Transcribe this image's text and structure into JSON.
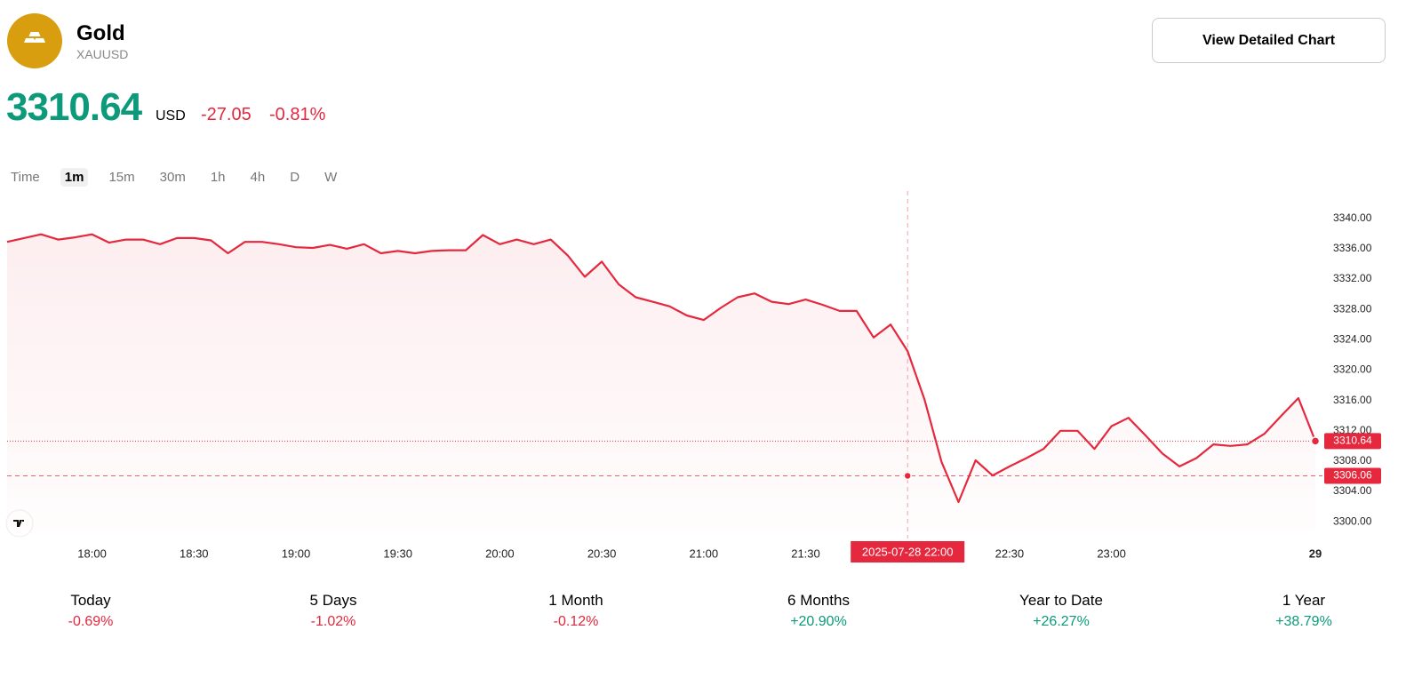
{
  "header": {
    "title": "Gold",
    "symbol": "XAUUSD",
    "button": "View Detailed Chart",
    "price": "3310.64",
    "currency": "USD",
    "change": "-27.05",
    "change_percent": "-0.81%"
  },
  "timeframes": {
    "items": [
      "Time",
      "1m",
      "15m",
      "30m",
      "1h",
      "4h",
      "D",
      "W"
    ],
    "selected": "1m"
  },
  "chart_data": {
    "type": "line",
    "color": "#e5283d",
    "x": [
      "2025-07-28 17:35",
      "2025-07-28 17:40",
      "2025-07-28 17:45",
      "2025-07-28 17:50",
      "2025-07-28 17:55",
      "2025-07-28 18:00",
      "2025-07-28 18:05",
      "2025-07-28 18:10",
      "2025-07-28 18:15",
      "2025-07-28 18:20",
      "2025-07-28 18:25",
      "2025-07-28 18:30",
      "2025-07-28 18:35",
      "2025-07-28 18:40",
      "2025-07-28 18:45",
      "2025-07-28 18:50",
      "2025-07-28 18:55",
      "2025-07-28 19:00",
      "2025-07-28 19:05",
      "2025-07-28 19:10",
      "2025-07-28 19:15",
      "2025-07-28 19:20",
      "2025-07-28 19:25",
      "2025-07-28 19:30",
      "2025-07-28 19:35",
      "2025-07-28 19:40",
      "2025-07-28 19:45",
      "2025-07-28 19:50",
      "2025-07-28 19:55",
      "2025-07-28 20:00",
      "2025-07-28 20:05",
      "2025-07-28 20:10",
      "2025-07-28 20:15",
      "2025-07-28 20:20",
      "2025-07-28 20:25",
      "2025-07-28 20:30",
      "2025-07-28 20:35",
      "2025-07-28 20:40",
      "2025-07-28 20:45",
      "2025-07-28 20:50",
      "2025-07-28 20:55",
      "2025-07-28 21:00",
      "2025-07-28 21:05",
      "2025-07-28 21:10",
      "2025-07-28 21:15",
      "2025-07-28 21:20",
      "2025-07-28 21:25",
      "2025-07-28 21:30",
      "2025-07-28 21:35",
      "2025-07-28 21:40",
      "2025-07-28 21:45",
      "2025-07-28 21:50",
      "2025-07-28 21:55",
      "2025-07-28 22:00",
      "2025-07-28 22:05",
      "2025-07-28 22:10",
      "2025-07-28 22:15",
      "2025-07-28 22:20",
      "2025-07-28 22:25",
      "2025-07-28 22:30",
      "2025-07-28 22:35",
      "2025-07-28 22:40",
      "2025-07-28 22:45",
      "2025-07-28 22:50",
      "2025-07-28 22:55",
      "2025-07-28 23:00",
      "2025-07-28 23:05",
      "2025-07-28 23:10",
      "2025-07-28 23:15",
      "2025-07-28 23:20",
      "2025-07-28 23:25",
      "2025-07-28 23:30",
      "2025-07-28 23:35",
      "2025-07-28 23:40",
      "2025-07-28 23:45",
      "2025-07-28 23:50",
      "2025-07-28 23:55",
      "2025-07-29 00:00"
    ],
    "values": [
      3336.9,
      3337.4,
      3337.9,
      3337.2,
      3337.5,
      3337.9,
      3336.8,
      3337.2,
      3337.2,
      3336.6,
      3337.4,
      3337.4,
      3337.1,
      3335.4,
      3336.9,
      3336.9,
      3336.6,
      3336.2,
      3336.1,
      3336.5,
      3336.0,
      3336.6,
      3335.4,
      3335.7,
      3335.4,
      3335.7,
      3335.8,
      3335.8,
      3337.8,
      3336.6,
      3337.2,
      3336.6,
      3337.2,
      3335.1,
      3332.3,
      3334.3,
      3331.3,
      3329.6,
      3329.0,
      3328.4,
      3327.2,
      3326.6,
      3328.2,
      3329.6,
      3330.1,
      3329.0,
      3328.7,
      3329.3,
      3328.6,
      3327.8,
      3327.8,
      3324.3,
      3326.0,
      3322.5,
      3316.1,
      3307.9,
      3302.6,
      3308.1,
      3306.1,
      3307.3,
      3308.4,
      3309.6,
      3312.0,
      3312.0,
      3309.6,
      3312.6,
      3313.7,
      3311.4,
      3309.0,
      3307.3,
      3308.4,
      3310.2,
      3310.0,
      3310.2,
      3311.6,
      3314.0,
      3316.3,
      3310.64
    ],
    "xlim": [
      "2025-07-28 17:35",
      "2025-07-29 00:00"
    ],
    "xticks": [
      {
        "value": "2025-07-28 18:00",
        "label": "18:00"
      },
      {
        "value": "2025-07-28 18:30",
        "label": "18:30"
      },
      {
        "value": "2025-07-28 19:00",
        "label": "19:00"
      },
      {
        "value": "2025-07-28 19:30",
        "label": "19:30"
      },
      {
        "value": "2025-07-28 20:00",
        "label": "20:00"
      },
      {
        "value": "2025-07-28 20:30",
        "label": "20:30"
      },
      {
        "value": "2025-07-28 21:00",
        "label": "21:00"
      },
      {
        "value": "2025-07-28 21:30",
        "label": "21:30"
      },
      {
        "value": "2025-07-28 22:30",
        "label": "22:30"
      },
      {
        "value": "2025-07-28 23:00",
        "label": "23:00"
      },
      {
        "value": "2025-07-29 00:00",
        "label": "29"
      }
    ],
    "ylim": [
      3298.5,
      3343.6
    ],
    "yticks": [
      {
        "value": 3300,
        "label": "3300.00"
      },
      {
        "value": 3304,
        "label": "3304.00"
      },
      {
        "value": 3308,
        "label": "3308.00"
      },
      {
        "value": 3312,
        "label": "3312.00"
      },
      {
        "value": 3316,
        "label": "3316.00"
      },
      {
        "value": 3320,
        "label": "3320.00"
      },
      {
        "value": 3324,
        "label": "3324.00"
      },
      {
        "value": 3328,
        "label": "3328.00"
      },
      {
        "value": 3332,
        "label": "3332.00"
      },
      {
        "value": 3336,
        "label": "3336.00"
      },
      {
        "value": 3340,
        "label": "3340.00"
      }
    ],
    "last_price": 3310.64,
    "crosshair": {
      "x": "2025-07-28 22:00",
      "y": 3306.06
    }
  },
  "stats": [
    {
      "label": "Today",
      "value": "-0.69%"
    },
    {
      "label": "5 Days",
      "value": "-1.02%"
    },
    {
      "label": "1 Month",
      "value": "-0.12%"
    },
    {
      "label": "6 Months",
      "value": "+20.90%"
    },
    {
      "label": "Year to Date",
      "value": "+26.27%"
    },
    {
      "label": "1 Year",
      "value": "+38.79%"
    }
  ]
}
